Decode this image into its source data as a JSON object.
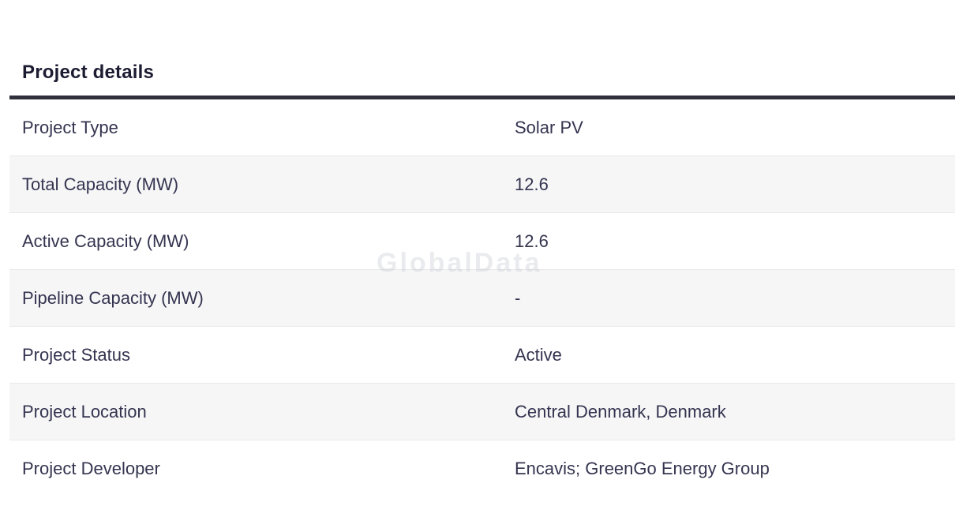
{
  "section": {
    "title": "Project details"
  },
  "watermark": {
    "text": "GlobalData"
  },
  "table": {
    "rows": [
      {
        "label": "Project Type",
        "value": "Solar PV"
      },
      {
        "label": "Total Capacity (MW)",
        "value": "12.6"
      },
      {
        "label": "Active Capacity (MW)",
        "value": "12.6"
      },
      {
        "label": "Pipeline Capacity (MW)",
        "value": "-"
      },
      {
        "label": "Project Status",
        "value": "Active"
      },
      {
        "label": "Project Location",
        "value": "Central Denmark, Denmark"
      },
      {
        "label": "Project Developer",
        "value": "Encavis; GreenGo Energy Group"
      }
    ]
  },
  "colors": {
    "title_text": "#1b1b32",
    "body_text": "#343450",
    "header_rule": "#30303c",
    "shaded_row_bg": "#f6f6f7",
    "row_separator": "#e9e9eb",
    "watermark": "#eeeff2"
  }
}
